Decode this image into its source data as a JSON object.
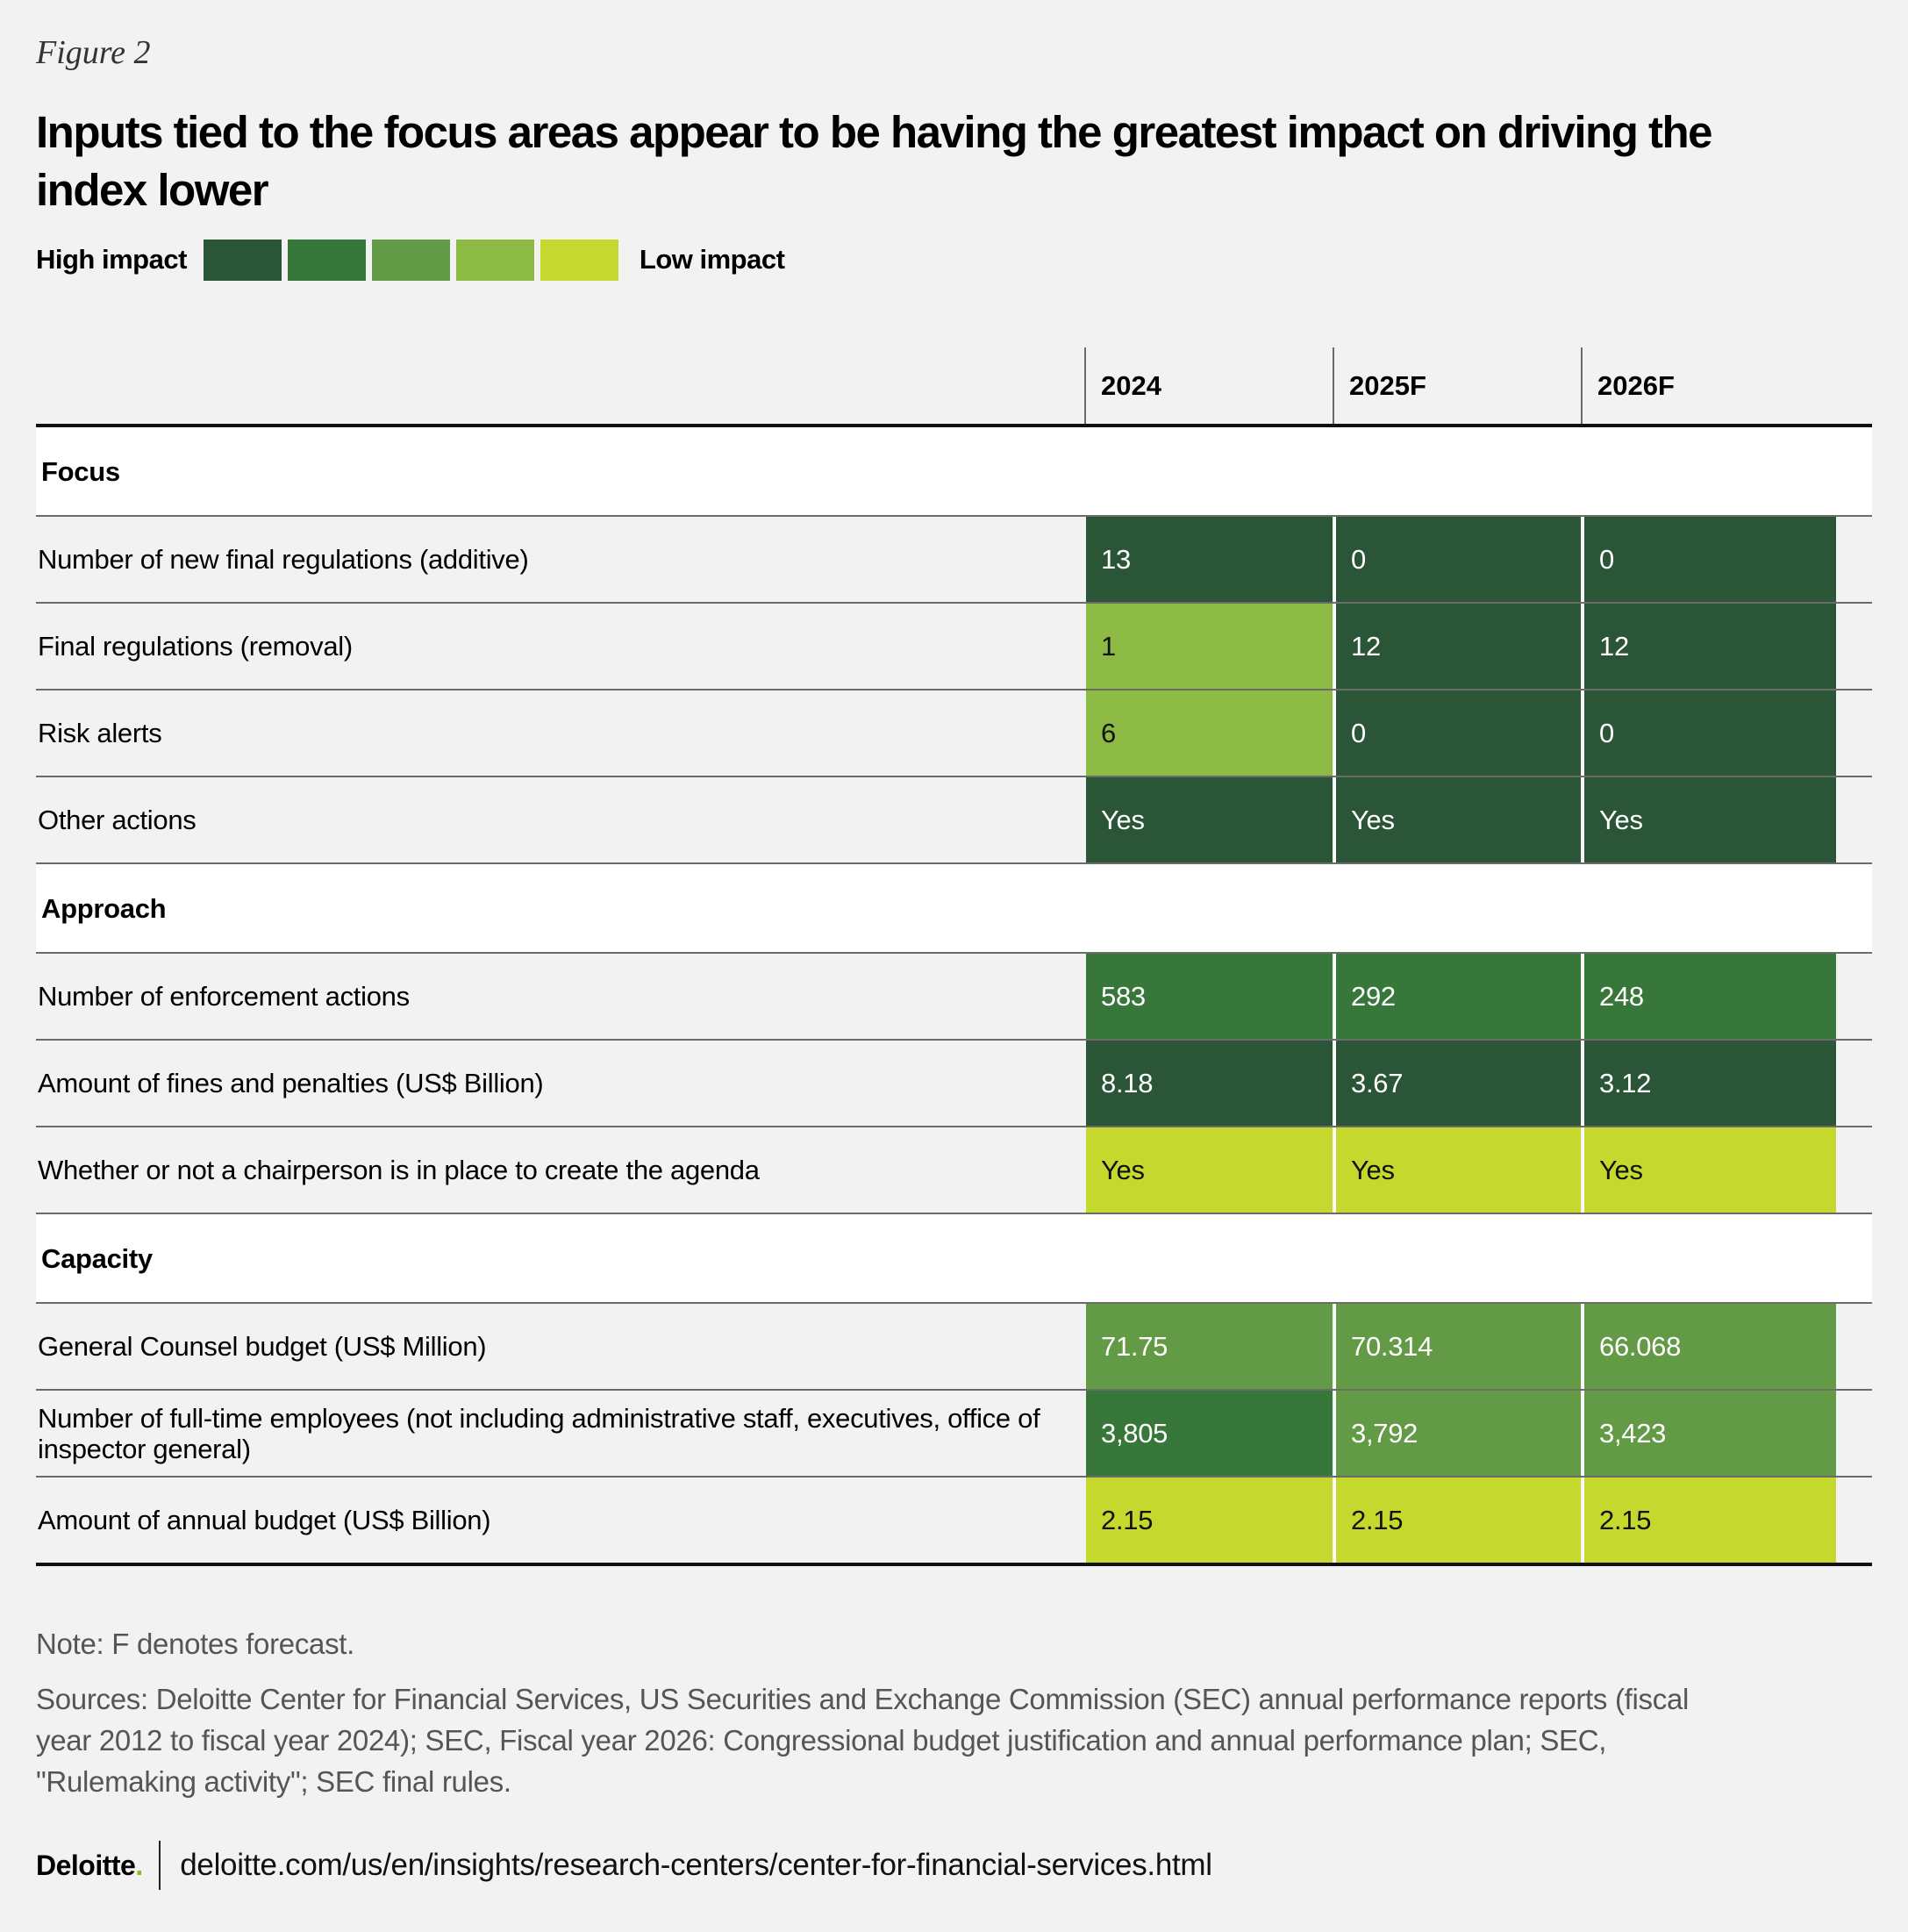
{
  "figure_label": "Figure 2",
  "title": "Inputs tied to the focus areas appear to be having the greatest impact on driving the index lower",
  "legend": {
    "high_label": "High impact",
    "low_label": "Low impact",
    "scale_colors": [
      "#2a5537",
      "#37773a",
      "#629a45",
      "#8cba42",
      "#c5d82e"
    ]
  },
  "chart_data": {
    "type": "table",
    "columns": [
      "2024",
      "2025F",
      "2026F"
    ],
    "sections": [
      {
        "name": "Focus",
        "rows": [
          {
            "label": "Number of new final regulations (additive)",
            "values": [
              "13",
              "0",
              "0"
            ],
            "impact": [
              1,
              1,
              1
            ]
          },
          {
            "label": "Final regulations (removal)",
            "values": [
              "1",
              "12",
              "12"
            ],
            "impact": [
              4,
              1,
              1
            ]
          },
          {
            "label": "Risk alerts",
            "values": [
              "6",
              "0",
              "0"
            ],
            "impact": [
              4,
              1,
              1
            ]
          },
          {
            "label": "Other actions",
            "values": [
              "Yes",
              "Yes",
              "Yes"
            ],
            "impact": [
              1,
              1,
              1
            ]
          }
        ]
      },
      {
        "name": "Approach",
        "rows": [
          {
            "label": "Number of enforcement actions",
            "values": [
              "583",
              "292",
              "248"
            ],
            "impact": [
              2,
              2,
              2
            ]
          },
          {
            "label": "Amount of fines and penalties (US$ Billion)",
            "values": [
              "8.18",
              "3.67",
              "3.12"
            ],
            "impact": [
              1,
              1,
              1
            ]
          },
          {
            "label": "Whether or not a chairperson is in place to create the agenda",
            "values": [
              "Yes",
              "Yes",
              "Yes"
            ],
            "impact": [
              5,
              5,
              5
            ]
          }
        ]
      },
      {
        "name": "Capacity",
        "rows": [
          {
            "label": "General Counsel budget (US$ Million)",
            "values": [
              "71.75",
              "70.314",
              "66.068"
            ],
            "impact": [
              3,
              3,
              3
            ]
          },
          {
            "label": "Number of full-time employees (not including administrative staff, executives, office of inspector general)",
            "values": [
              "3,805",
              "3,792",
              "3,423"
            ],
            "impact": [
              2,
              3,
              3
            ]
          },
          {
            "label": "Amount of annual budget (US$ Billion)",
            "values": [
              "2.15",
              "2.15",
              "2.15"
            ],
            "impact": [
              5,
              5,
              5
            ]
          }
        ]
      }
    ]
  },
  "note": "Note: F denotes forecast.",
  "sources": "Sources: Deloitte Center for Financial Services, US Securities and Exchange Commission (SEC) annual performance reports (fiscal year 2012 to fiscal year 2024); SEC, Fiscal year 2026: Congressional budget justification and annual performance plan; SEC, \"Rulemaking activity\"; SEC final rules.",
  "footer": {
    "logo_text": "Deloitte",
    "logo_dot": ".",
    "url": "deloitte.com/us/en/insights/research-centers/center-for-financial-services.html"
  }
}
